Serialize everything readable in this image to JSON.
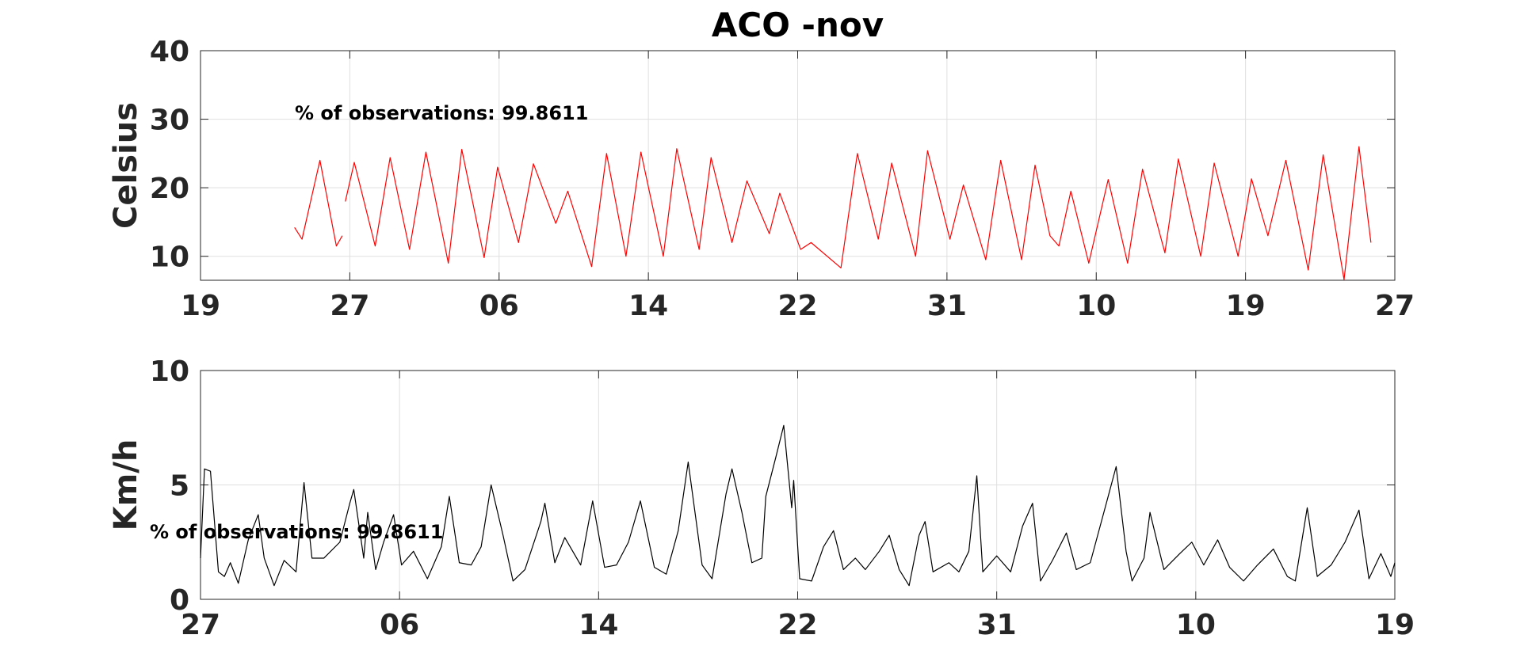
{
  "chart_data": [
    {
      "type": "line",
      "title": "ACO -nov",
      "ylabel": "Celsius",
      "annotation": "% of observations: 99.8611",
      "color": "#ff0000",
      "grid": true,
      "xlim": [
        0,
        8
      ],
      "xticks": [
        {
          "value": 0,
          "label": "19"
        },
        {
          "value": 1,
          "label": "27"
        },
        {
          "value": 2,
          "label": "06"
        },
        {
          "value": 3,
          "label": "14"
        },
        {
          "value": 4,
          "label": "22"
        },
        {
          "value": 5,
          "label": "31"
        },
        {
          "value": 6,
          "label": "10"
        },
        {
          "value": 7,
          "label": "19"
        },
        {
          "value": 8,
          "label": "27"
        }
      ],
      "ylim": [
        6.5,
        40
      ],
      "yticks": [
        10,
        20,
        30,
        40
      ],
      "x": [
        0.63,
        0.68,
        0.8,
        0.91,
        0.95,
        0.96,
        0.97,
        1.03,
        1.17,
        1.27,
        1.4,
        1.51,
        1.66,
        1.75,
        1.9,
        1.99,
        2.13,
        2.23,
        2.38,
        2.46,
        2.62,
        2.72,
        2.85,
        2.95,
        3.1,
        3.19,
        3.34,
        3.42,
        3.56,
        3.66,
        3.81,
        3.88,
        4.02,
        4.09,
        4.29,
        4.4,
        4.54,
        4.63,
        4.79,
        4.87,
        5.02,
        5.11,
        5.26,
        5.36,
        5.5,
        5.59,
        5.69,
        5.75,
        5.83,
        5.95,
        6.08,
        6.21,
        6.31,
        6.46,
        6.55,
        6.7,
        6.79,
        6.95,
        7.04,
        7.15,
        7.27,
        7.42,
        7.52,
        7.66,
        7.76,
        7.84
      ],
      "values": [
        14.2,
        12.5,
        24,
        11.5,
        13,
        null,
        18,
        23.7,
        11.5,
        24.4,
        11,
        25.2,
        9,
        25.6,
        9.8,
        23,
        12,
        23.5,
        14.8,
        19.5,
        8.5,
        25,
        10,
        25.2,
        10,
        25.7,
        11,
        24.4,
        12,
        21,
        13.3,
        19.2,
        11,
        12,
        8.3,
        25,
        12.5,
        23.6,
        10,
        25.4,
        12.5,
        20.4,
        9.5,
        24,
        9.5,
        23.3,
        13,
        11.5,
        19.5,
        9,
        21.2,
        9,
        22.7,
        10.5,
        24.2,
        10,
        23.6,
        10,
        21.3,
        13,
        24,
        8,
        24.8,
        6.6,
        26,
        12
      ]
    },
    {
      "type": "line",
      "ylabel": "Km/h",
      "annotation": "% of observations: 99.8611",
      "color": "#000000",
      "grid": true,
      "xlim": [
        0,
        6
      ],
      "xticks": [
        {
          "value": 0,
          "label": "27"
        },
        {
          "value": 1,
          "label": "06"
        },
        {
          "value": 2,
          "label": "14"
        },
        {
          "value": 3,
          "label": "22"
        },
        {
          "value": 4,
          "label": "31"
        },
        {
          "value": 5,
          "label": "10"
        },
        {
          "value": 6,
          "label": "19"
        }
      ],
      "ylim": [
        0,
        10
      ],
      "yticks": [
        0,
        5,
        10
      ],
      "x": [
        0,
        0.02,
        0.05,
        0.09,
        0.12,
        0.15,
        0.19,
        0.24,
        0.29,
        0.32,
        0.37,
        0.42,
        0.48,
        0.52,
        0.56,
        0.62,
        0.7,
        0.75,
        0.77,
        0.82,
        0.84,
        0.88,
        0.92,
        0.97,
        1.01,
        1.07,
        1.14,
        1.21,
        1.25,
        1.3,
        1.36,
        1.41,
        1.46,
        1.52,
        1.57,
        1.63,
        1.71,
        1.73,
        1.78,
        1.83,
        1.91,
        1.97,
        2.03,
        2.09,
        2.15,
        2.21,
        2.28,
        2.34,
        2.4,
        2.45,
        2.52,
        2.57,
        2.64,
        2.67,
        2.72,
        2.77,
        2.82,
        2.84,
        2.89,
        2.93,
        2.97,
        2.98,
        3.01,
        3.07,
        3.13,
        3.18,
        3.23,
        3.29,
        3.34,
        3.41,
        3.46,
        3.51,
        3.56,
        3.61,
        3.64,
        3.68,
        3.76,
        3.81,
        3.86,
        3.9,
        3.93,
        4.0,
        4.07,
        4.13,
        4.18,
        4.22,
        4.28,
        4.35,
        4.4,
        4.47,
        4.56,
        4.6,
        4.65,
        4.68,
        4.74,
        4.77,
        4.84,
        4.92,
        4.98,
        5.04,
        5.11,
        5.17,
        5.24,
        5.31,
        5.39,
        5.46,
        5.5,
        5.56,
        5.61,
        5.68,
        5.75,
        5.82,
        5.87,
        5.93,
        5.98,
        6.0
      ],
      "values": [
        1.8,
        5.7,
        5.6,
        1.2,
        1.0,
        1.6,
        0.7,
        2.6,
        3.7,
        1.8,
        0.6,
        1.7,
        1.2,
        5.1,
        1.8,
        1.8,
        2.5,
        4.2,
        4.8,
        1.8,
        3.8,
        1.3,
        2.5,
        3.7,
        1.5,
        2.1,
        0.9,
        2.3,
        4.5,
        1.6,
        1.5,
        2.3,
        5.0,
        2.8,
        0.8,
        1.3,
        3.4,
        4.2,
        1.6,
        2.7,
        1.5,
        4.3,
        1.4,
        1.5,
        2.5,
        4.3,
        1.4,
        1.1,
        3.0,
        6.0,
        1.5,
        0.9,
        4.6,
        5.7,
        3.8,
        1.6,
        1.8,
        4.5,
        6.2,
        7.6,
        4.0,
        5.2,
        0.9,
        0.8,
        2.3,
        3.0,
        1.3,
        1.8,
        1.3,
        2.1,
        2.8,
        1.3,
        0.6,
        2.8,
        3.4,
        1.2,
        1.6,
        1.2,
        2.1,
        5.4,
        1.2,
        1.9,
        1.2,
        3.2,
        4.2,
        0.8,
        1.7,
        2.9,
        1.3,
        1.6,
        4.5,
        5.8,
        2.1,
        0.8,
        1.8,
        3.8,
        1.3,
        2.0,
        2.5,
        1.5,
        2.6,
        1.4,
        0.8,
        1.5,
        2.2,
        1.0,
        0.8,
        4.0,
        1.0,
        1.5,
        2.5,
        3.9,
        0.9,
        2.0,
        1.0,
        1.6
      ]
    }
  ]
}
